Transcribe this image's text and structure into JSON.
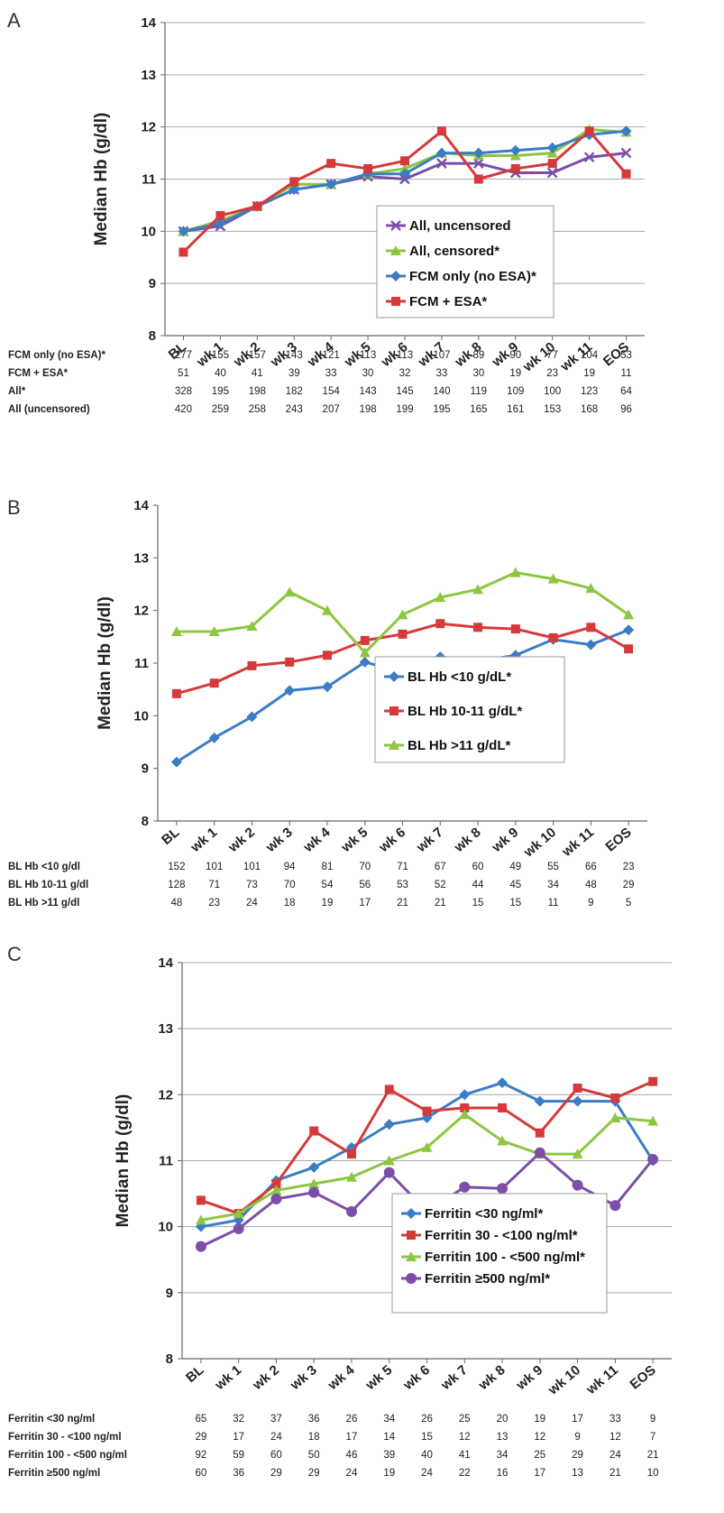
{
  "chart_data": [
    {
      "panel": "A",
      "type": "line",
      "ylabel": "Median Hb (g/dl)",
      "ylim": [
        8,
        14
      ],
      "yticks": [
        8,
        9,
        10,
        11,
        12,
        13,
        14
      ],
      "categories": [
        "BL",
        "wk 1",
        "wk 2",
        "wk 3",
        "wk 4",
        "wk 5",
        "wk 6",
        "wk 7",
        "wk 8",
        "wk 9",
        "wk 10",
        "wk 11",
        "EOS"
      ],
      "grid": true,
      "legend_position": "center-right",
      "series": [
        {
          "name": "All, uncensored",
          "color": "#7b4fa8",
          "marker": "x",
          "values": [
            10.0,
            10.1,
            10.48,
            10.8,
            10.9,
            11.05,
            11.0,
            11.3,
            11.3,
            11.12,
            11.12,
            11.42,
            11.5
          ]
        },
        {
          "name": "All, censored*",
          "color": "#8dc63f",
          "marker": "triangle",
          "values": [
            10.0,
            10.2,
            10.48,
            10.9,
            10.9,
            11.1,
            11.2,
            11.5,
            11.45,
            11.45,
            11.5,
            11.95,
            11.9
          ]
        },
        {
          "name": "FCM only (no ESA)*",
          "color": "#3b7dc4",
          "marker": "diamond",
          "values": [
            10.0,
            10.15,
            10.48,
            10.8,
            10.9,
            11.1,
            11.1,
            11.5,
            11.5,
            11.55,
            11.6,
            11.85,
            11.92
          ]
        },
        {
          "name": "FCM + ESA*",
          "color": "#d6393a",
          "marker": "square",
          "values": [
            9.6,
            10.3,
            10.48,
            10.95,
            11.3,
            11.2,
            11.35,
            11.92,
            11.0,
            11.2,
            11.3,
            11.92,
            11.1
          ]
        }
      ],
      "n_table": [
        {
          "label": "FCM only (no ESA)*",
          "values": [
            "277",
            "155",
            "157",
            "143",
            "121",
            "113",
            "113",
            "107",
            "89",
            "90",
            "77",
            "104",
            "53"
          ]
        },
        {
          "label": "FCM + ESA*",
          "values": [
            "51",
            "40",
            "41",
            "39",
            "33",
            "30",
            "32",
            "33",
            "30",
            "19",
            "23",
            "19",
            "11"
          ]
        },
        {
          "label": "All*",
          "values": [
            "328",
            "195",
            "198",
            "182",
            "154",
            "143",
            "145",
            "140",
            "119",
            "109",
            "100",
            "123",
            "64"
          ]
        },
        {
          "label": "All (uncensored)",
          "values": [
            "420",
            "259",
            "258",
            "243",
            "207",
            "198",
            "199",
            "195",
            "165",
            "161",
            "153",
            "168",
            "96"
          ]
        }
      ]
    },
    {
      "panel": "B",
      "type": "line",
      "ylabel": "Median Hb (g/dl)",
      "ylim": [
        8,
        14
      ],
      "yticks": [
        8,
        9,
        10,
        11,
        12,
        13,
        14
      ],
      "categories": [
        "BL",
        "wk 1",
        "wk 2",
        "wk 3",
        "wk 4",
        "wk 5",
        "wk 6",
        "wk 7",
        "wk 8",
        "wk 9",
        "wk 10",
        "wk 11",
        "EOS"
      ],
      "grid": false,
      "legend_position": "center-right",
      "series": [
        {
          "name": "BL Hb <10 g/dL*",
          "color": "#3b7dc4",
          "marker": "diamond",
          "values": [
            9.12,
            9.58,
            9.98,
            10.48,
            10.55,
            11.02,
            10.82,
            11.12,
            11.03,
            11.15,
            11.45,
            11.35,
            11.63
          ]
        },
        {
          "name": "BL Hb 10-11 g/dL*",
          "color": "#d6393a",
          "marker": "square",
          "values": [
            10.42,
            10.62,
            10.95,
            11.02,
            11.15,
            11.43,
            11.55,
            11.75,
            11.68,
            11.65,
            11.48,
            11.68,
            11.27
          ]
        },
        {
          "name": "BL Hb >11 g/dL*",
          "color": "#8dc63f",
          "marker": "triangle",
          "values": [
            11.6,
            11.6,
            11.7,
            12.35,
            12.0,
            11.2,
            11.92,
            12.25,
            12.4,
            12.72,
            12.6,
            12.42,
            11.92
          ]
        }
      ],
      "n_table": [
        {
          "label": "BL Hb <10 g/dl",
          "values": [
            "152",
            "101",
            "101",
            "94",
            "81",
            "70",
            "71",
            "67",
            "60",
            "49",
            "55",
            "66",
            "23"
          ]
        },
        {
          "label": "BL Hb 10-11 g/dl",
          "values": [
            "128",
            "71",
            "73",
            "70",
            "54",
            "56",
            "53",
            "52",
            "44",
            "45",
            "34",
            "48",
            "29"
          ]
        },
        {
          "label": "BL Hb >11 g/dl",
          "values": [
            "48",
            "23",
            "24",
            "18",
            "19",
            "17",
            "21",
            "21",
            "15",
            "15",
            "11",
            "9",
            "5"
          ]
        }
      ]
    },
    {
      "panel": "C",
      "type": "line",
      "ylabel": "Median Hb (g/dl)",
      "ylim": [
        8,
        14
      ],
      "yticks": [
        8,
        9,
        10,
        11,
        12,
        13,
        14
      ],
      "categories": [
        "BL",
        "wk 1",
        "wk 2",
        "wk 3",
        "wk 4",
        "wk 5",
        "wk 6",
        "wk 7",
        "wk 8",
        "wk 9",
        "wk 10",
        "wk 11",
        "EOS"
      ],
      "grid": true,
      "legend_position": "bottom-right",
      "series": [
        {
          "name": "Ferritin <30 ng/ml*",
          "color": "#3b7dc4",
          "marker": "diamond",
          "values": [
            10.0,
            10.1,
            10.7,
            10.9,
            11.2,
            11.55,
            11.65,
            12.0,
            12.18,
            11.9,
            11.9,
            11.9,
            11.0
          ]
        },
        {
          "name": "Ferritin 30 - <100 ng/ml*",
          "color": "#d6393a",
          "marker": "square",
          "values": [
            10.4,
            10.2,
            10.65,
            11.45,
            11.1,
            12.08,
            11.75,
            11.8,
            11.8,
            11.42,
            12.1,
            11.95,
            12.2
          ]
        },
        {
          "name": "Ferritin 100 - <500 ng/ml*",
          "color": "#8dc63f",
          "marker": "triangle",
          "values": [
            10.1,
            10.2,
            10.55,
            10.65,
            10.75,
            11.0,
            11.2,
            11.7,
            11.3,
            11.1,
            11.1,
            11.65,
            11.6
          ]
        },
        {
          "name": "Ferritin ≥500 ng/ml*",
          "color": "#7b4fa8",
          "marker": "circle",
          "values": [
            9.7,
            9.97,
            10.42,
            10.52,
            10.23,
            10.82,
            10.23,
            10.6,
            10.58,
            11.12,
            10.63,
            10.32,
            11.02
          ]
        }
      ],
      "n_table": [
        {
          "label": "Ferritin <30 ng/ml",
          "values": [
            "65",
            "32",
            "37",
            "36",
            "26",
            "34",
            "26",
            "25",
            "20",
            "19",
            "17",
            "33",
            "9"
          ]
        },
        {
          "label": "Ferritin 30 - <100 ng/ml",
          "values": [
            "29",
            "17",
            "24",
            "18",
            "17",
            "14",
            "15",
            "12",
            "13",
            "12",
            "9",
            "12",
            "7"
          ]
        },
        {
          "label": "Ferritin 100 - <500 ng/ml",
          "values": [
            "92",
            "59",
            "60",
            "50",
            "46",
            "39",
            "40",
            "41",
            "34",
            "25",
            "29",
            "24",
            "21"
          ]
        },
        {
          "label": "Ferritin ≥500 ng/ml",
          "values": [
            "60",
            "36",
            "29",
            "29",
            "24",
            "19",
            "24",
            "22",
            "16",
            "17",
            "13",
            "21",
            "10"
          ]
        }
      ]
    }
  ],
  "panels": {
    "a": {
      "letter": "A"
    },
    "b": {
      "letter": "B"
    },
    "c": {
      "letter": "C"
    }
  }
}
